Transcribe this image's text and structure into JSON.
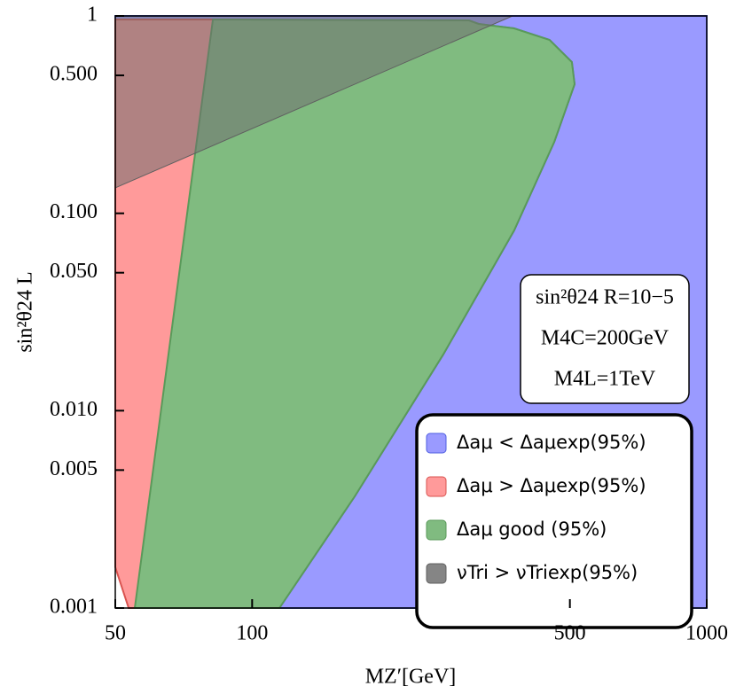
{
  "chart_data": {
    "type": "region",
    "x_label": "MZ′[GeV]",
    "y_label": "sin²θ24 L",
    "log_x": true,
    "log_y": true,
    "xlim": [
      50,
      1000
    ],
    "ylim": [
      0.001,
      1
    ],
    "xticks": [
      50,
      100,
      500,
      1000
    ],
    "yticks": [
      0.001,
      0.005,
      {
        "value": 0.01,
        "label": "0.010"
      },
      {
        "value": 0.05,
        "label": "0.050"
      },
      {
        "value": 0.1,
        "label": "0.100"
      },
      {
        "value": 0.5,
        "label": "0.500"
      },
      1
    ],
    "annotations": [
      "sin²θ24 R=10−5",
      "M4C=200GeV",
      "M4L=1TeV"
    ],
    "series": [
      {
        "name": "Δaμ < Δaμexp(95%)",
        "color": "#9a9aff",
        "stroke": "#4f5fe0",
        "x": [
          114.8,
          1000,
          1000,
          50,
          50,
          82,
          300,
          315,
          377,
          451,
          505,
          512,
          462,
          377,
          263.4,
          168.2
        ],
        "y": [
          0.001,
          0.001,
          1,
          1,
          0.959,
          0.959,
          0.95,
          0.911,
          0.865,
          0.756,
          0.584,
          0.451,
          0.2303,
          0.0819,
          0.0193,
          0.00368
        ]
      },
      {
        "name": "Δaμ > Δaμexp(95%)",
        "color": "#ff9a9a",
        "stroke": "#d9534f",
        "x": [
          53.5,
          55.2,
          68.5,
          85.7,
          107.3,
          134.3,
          183.9,
          215,
          215,
          201,
          168.2,
          82,
          50,
          50
        ],
        "y": [
          0.001,
          0.001,
          0.00368,
          0.01148,
          0.0323,
          0.0908,
          0.2303,
          0.4284,
          0.5,
          0.648,
          0.839,
          0.959,
          0.959,
          0.00161
        ]
      },
      {
        "name": "Δaμ good (95%)",
        "color": "#80bb80",
        "stroke": "#5a9a5a",
        "x": [
          55.2,
          82,
          300,
          315,
          377,
          451,
          505,
          512,
          462,
          377,
          263.4,
          168.2,
          114.8
        ],
        "y": [
          0.001,
          0.959,
          0.95,
          0.911,
          0.865,
          0.756,
          0.584,
          0.451,
          0.2303,
          0.0819,
          0.0193,
          0.00368,
          0.001
        ]
      },
      {
        "name": "νTri > νTriexp(95%)",
        "color": "#707070",
        "stroke": "#606060",
        "x": [
          50,
          374,
          50
        ],
        "y": [
          0.1346,
          1,
          1
        ]
      }
    ]
  }
}
